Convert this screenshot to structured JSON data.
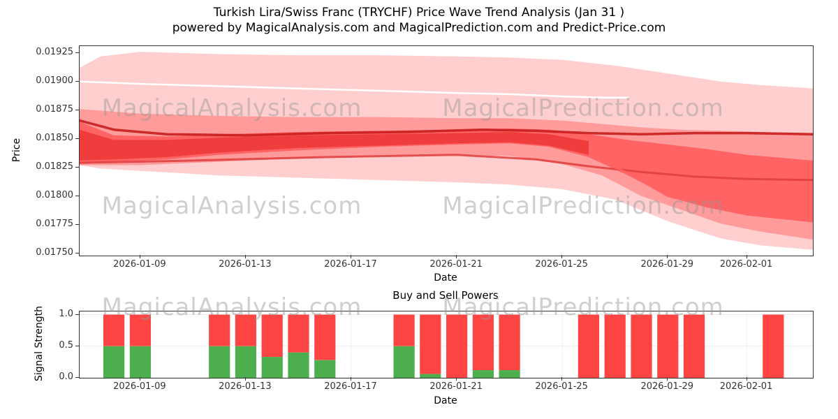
{
  "title": {
    "line1": "Turkish Lira/Swiss Franc (TRYCHF) Price Wave Trend Analysis (Jan 31 )",
    "line2": "powered by MagicalAnalysis.com and MagicalPrediction.com and Predict-Price.com"
  },
  "watermark": {
    "analysis": "MagicalAnalysis.com",
    "prediction": "MagicalPrediction.com"
  },
  "colors": {
    "sell_red": "#ff4444",
    "buy_green": "#4cae4c",
    "axis": "#333333",
    "watermark_grey": "#949494"
  },
  "chart_data": [
    {
      "type": "area",
      "title": "",
      "xlabel": "Date",
      "ylabel": "Price",
      "x_origin": "2026-01-06",
      "x_domain_days": [
        0.7,
        28.5
      ],
      "ylim": [
        0.01748,
        0.01931
      ],
      "grid": false,
      "legend": null,
      "y_tick_labels": [
        "0.01925",
        "0.01900",
        "0.01875",
        "0.01850",
        "0.01825",
        "0.01800",
        "0.01775",
        "0.01750"
      ],
      "x_tick_labels": [
        "2026-01-09",
        "2026-01-13",
        "2026-01-17",
        "2026-01-21",
        "2026-01-25",
        "2026-01-29",
        "2026-02-01"
      ],
      "bands": [
        {
          "name": "outer-envelope",
          "color": "rgba(255,105,105,0.32)",
          "x": [
            0.7,
            1.5,
            3,
            6,
            9,
            12,
            15,
            17,
            19,
            21,
            23,
            25,
            26.5,
            28.5
          ],
          "upper": [
            0.01912,
            0.01922,
            0.01926,
            0.01924,
            0.01923,
            0.01923,
            0.01922,
            0.01921,
            0.01919,
            0.01914,
            0.01907,
            0.019,
            0.01897,
            0.01894
          ],
          "lower": [
            0.01827,
            0.01824,
            0.01822,
            0.01818,
            0.01816,
            0.01814,
            0.01812,
            0.0181,
            0.01806,
            0.01797,
            0.01778,
            0.01763,
            0.01757,
            0.01753
          ]
        },
        {
          "name": "mid-band",
          "color": "rgba(255,70,70,0.38)",
          "x": [
            0.7,
            3,
            6,
            9,
            12,
            15,
            17,
            19,
            20.5,
            22,
            23.5,
            25,
            26.5,
            28.5
          ],
          "upper": [
            0.01876,
            0.01872,
            0.0187,
            0.01869,
            0.01869,
            0.01868,
            0.01868,
            0.01866,
            0.01863,
            0.0186,
            0.01858,
            0.01857,
            0.01856,
            0.01855
          ],
          "lower": [
            0.01827,
            0.01827,
            0.0183,
            0.01833,
            0.01835,
            0.01836,
            0.01835,
            0.01828,
            0.01818,
            0.018,
            0.01788,
            0.01776,
            0.01769,
            0.01762
          ]
        },
        {
          "name": "core-band",
          "color": "rgba(255,30,30,0.45)",
          "x": [
            0.7,
            2,
            4,
            6,
            9,
            12,
            15,
            17,
            18.5,
            20,
            21.5,
            23,
            24.5,
            26,
            28.5
          ],
          "upper": [
            0.01865,
            0.01853,
            0.01852,
            0.01854,
            0.01856,
            0.01857,
            0.01858,
            0.01859,
            0.01858,
            0.01854,
            0.01849,
            0.01845,
            0.01841,
            0.01836,
            0.01831
          ],
          "lower": [
            0.01829,
            0.0183,
            0.01832,
            0.01836,
            0.0184,
            0.01843,
            0.01845,
            0.01846,
            0.01843,
            0.01834,
            0.01818,
            0.018,
            0.0179,
            0.01783,
            0.01777
          ]
        },
        {
          "name": "core-dark",
          "color": "rgba(220,15,15,0.45)",
          "x": [
            0.7,
            2,
            4,
            6,
            9,
            12,
            15,
            17,
            18.5,
            20
          ],
          "upper": [
            0.01858,
            0.01849,
            0.01849,
            0.01851,
            0.01853,
            0.01854,
            0.01855,
            0.01856,
            0.01854,
            0.01848
          ],
          "lower": [
            0.01831,
            0.01832,
            0.01834,
            0.01838,
            0.01842,
            0.01844,
            0.01846,
            0.01847,
            0.01844,
            0.01836
          ]
        }
      ],
      "lines": [
        {
          "name": "white-trend",
          "color": "#ffffff",
          "width": 2.5,
          "x": [
            0.7,
            3,
            6,
            9,
            12,
            15,
            17,
            19,
            20.5,
            21.5
          ],
          "y": [
            0.019,
            0.01898,
            0.01896,
            0.01894,
            0.01892,
            0.0189,
            0.01889,
            0.01887,
            0.01886,
            0.01886
          ]
        },
        {
          "name": "dark-flat",
          "color": "rgba(200,30,30,0.9)",
          "width": 3.5,
          "x": [
            0.7,
            2,
            4,
            7,
            10,
            13,
            16,
            18,
            20,
            22,
            24,
            26,
            28.5
          ],
          "y": [
            0.01866,
            0.01858,
            0.01854,
            0.01853,
            0.01855,
            0.01856,
            0.01858,
            0.01857,
            0.01855,
            0.01854,
            0.01855,
            0.01855,
            0.01854
          ]
        },
        {
          "name": "mid-decline",
          "color": "rgba(225,60,60,0.85)",
          "width": 3,
          "x": [
            0.7,
            5,
            10,
            15,
            18,
            20,
            22,
            24,
            26,
            28.5
          ],
          "y": [
            0.01829,
            0.01831,
            0.01834,
            0.01836,
            0.01832,
            0.01826,
            0.01821,
            0.01817,
            0.01815,
            0.01814
          ]
        },
        {
          "name": "lower-decline",
          "color": "rgba(255,100,100,0.85)",
          "width": 3,
          "x": [
            20,
            21.5,
            23,
            24.5,
            26,
            27,
            28.5
          ],
          "y": [
            0.01835,
            0.0182,
            0.018,
            0.01791,
            0.01786,
            0.01783,
            0.0178
          ]
        }
      ]
    },
    {
      "type": "bar",
      "title": "Buy and Sell Powers",
      "xlabel": "Date",
      "ylabel": "Signal Strength",
      "x_origin": "2026-01-06",
      "x_domain_days": [
        0.7,
        28.5
      ],
      "ylim": [
        0,
        1.05
      ],
      "grid": true,
      "bar_width_days": 0.8,
      "stacked_total": 1.0,
      "y_ticks": [
        0,
        0.5,
        1
      ],
      "y_tick_labels": [
        "0.0",
        "0.5",
        "1.0"
      ],
      "x_tick_labels": [
        "2026-01-09",
        "2026-01-13",
        "2026-01-17",
        "2026-01-21",
        "2026-01-25",
        "2026-01-29",
        "2026-02-01"
      ],
      "categories": [
        "2026-01-08",
        "2026-01-09",
        "2026-01-12",
        "2026-01-13",
        "2026-01-14",
        "2026-01-15",
        "2026-01-16",
        "2026-01-19",
        "2026-01-20",
        "2026-01-21",
        "2026-01-22",
        "2026-01-23",
        "2026-01-26",
        "2026-01-27",
        "2026-01-28",
        "2026-01-29",
        "2026-01-30",
        "2026-02-02"
      ],
      "series": [
        {
          "name": "Buy Power",
          "color": "#4cae4c",
          "values": [
            0.5,
            0.5,
            0.5,
            0.5,
            0.33,
            0.4,
            0.28,
            0.5,
            0.06,
            0.0,
            0.12,
            0.12,
            0,
            0,
            0,
            0,
            0,
            0
          ]
        },
        {
          "name": "Sell Power",
          "color": "#ff4444",
          "values": [
            0.5,
            0.5,
            0.5,
            0.5,
            0.67,
            0.6,
            0.72,
            0.5,
            0.94,
            1.0,
            0.88,
            0.88,
            1,
            1,
            1,
            1,
            1,
            1
          ]
        }
      ]
    }
  ]
}
